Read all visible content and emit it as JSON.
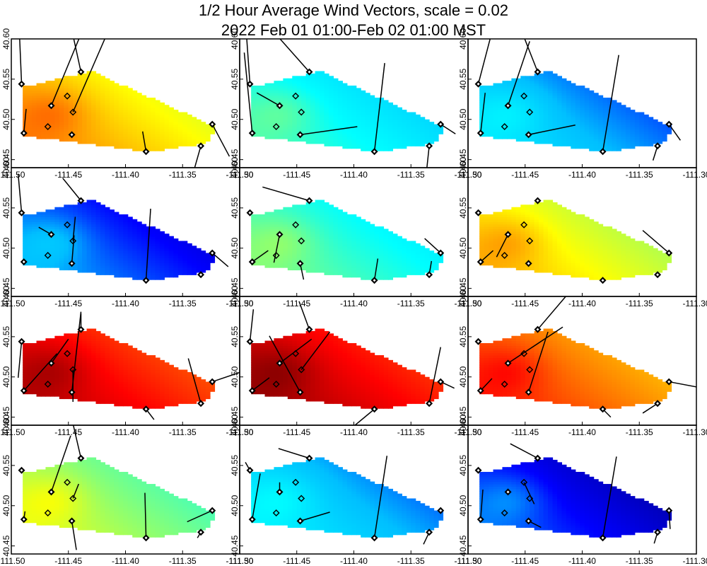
{
  "title": "1/2 Hour Average Wind Vectors, scale =  0.02",
  "subtitle": "2022 Feb 01 01:00-Feb 02 01:00 MST",
  "colors": {
    "scale": [
      "#00008b",
      "#0000ff",
      "#00bfff",
      "#00ffff",
      "#7fff7f",
      "#ffff00",
      "#ff7f00",
      "#ff0000",
      "#8b0000"
    ]
  },
  "chart_data": {
    "type": "scatter",
    "title": "1/2 Hour Average Wind Vectors, scale =  0.02",
    "subtitle": "2022 Feb 01 01:00-Feb 02 01:00 MST",
    "xlabel": "",
    "ylabel": "",
    "xlim": [
      -111.5,
      -111.3
    ],
    "ylim": [
      40.44,
      40.6
    ],
    "x_ticks": [
      "-111.50",
      "-111.45",
      "-111.40",
      "-111.35",
      "-111.30"
    ],
    "y_ticks": [
      "40.45",
      "40.50",
      "40.55",
      "40.60"
    ],
    "domain_polygon": [
      [
        -111.49,
        40.54
      ],
      [
        -111.43,
        40.56
      ],
      [
        -111.32,
        40.49
      ],
      [
        -111.33,
        40.47
      ],
      [
        -111.38,
        40.46
      ],
      [
        -111.49,
        40.48
      ]
    ],
    "stations": [
      {
        "lon": -111.491,
        "lat": 40.544,
        "s": "d"
      },
      {
        "lon": -111.489,
        "lat": 40.483,
        "s": "d"
      },
      {
        "lon": -111.465,
        "lat": 40.517,
        "s": "d"
      },
      {
        "lon": -111.468,
        "lat": 40.491,
        "s": "o"
      },
      {
        "lon": -111.451,
        "lat": 40.529,
        "s": "o"
      },
      {
        "lon": -111.446,
        "lat": 40.509,
        "s": "o"
      },
      {
        "lon": -111.447,
        "lat": 40.481,
        "s": "d"
      },
      {
        "lon": -111.439,
        "lat": 40.559,
        "s": "d"
      },
      {
        "lon": -111.382,
        "lat": 40.46,
        "s": "d"
      },
      {
        "lon": -111.334,
        "lat": 40.467,
        "s": "d"
      },
      {
        "lon": -111.324,
        "lat": 40.494,
        "s": "d"
      }
    ],
    "panels": [
      {
        "level": 0.7,
        "vectors": [
          [
            -0.003,
            0.1
          ],
          [
            0.002,
            0.03
          ],
          [
            0.035,
            0.12
          ],
          [
            0,
            0
          ],
          [
            0,
            0
          ],
          [
            0.03,
            0.098
          ],
          [
            0,
            0
          ],
          [
            -0.01,
            0.065
          ],
          [
            -0.003,
            0.025
          ],
          [
            -0.006,
            -0.03
          ],
          [
            0.015,
            -0.04
          ]
        ]
      },
      {
        "level": 0.4,
        "vectors": [
          [
            -0.003,
            0.06
          ],
          [
            -0.007,
            0.1
          ],
          [
            -0.02,
            0.016
          ],
          [
            0,
            0
          ],
          [
            0,
            0
          ],
          [
            0,
            0
          ],
          [
            0.05,
            0.01
          ],
          [
            -0.045,
            0.072
          ],
          [
            0.009,
            0.11
          ],
          [
            -0.003,
            -0.04
          ],
          [
            0.013,
            -0.012
          ]
        ]
      },
      {
        "level": 0.28,
        "vectors": [
          [
            0.012,
            0.065
          ],
          [
            0.004,
            0.05
          ],
          [
            0.019,
            0.08
          ],
          [
            0,
            0
          ],
          [
            0,
            0
          ],
          [
            0,
            0
          ],
          [
            0.041,
            0.012
          ],
          [
            -0.018,
            0.065
          ],
          [
            0.014,
            0.12
          ],
          [
            -0.004,
            -0.018
          ],
          [
            0.01,
            -0.02
          ]
        ]
      },
      {
        "level": 0.2,
        "vectors": [
          [
            -0.003,
            0.048
          ],
          [
            0,
            0
          ],
          [
            -0.011,
            0.009
          ],
          [
            0,
            0
          ],
          [
            0,
            0
          ],
          [
            0.002,
            0.03
          ],
          [
            0.002,
            0.035
          ],
          [
            -0.016,
            0.028
          ],
          [
            0.004,
            0.089
          ],
          [
            0,
            0
          ],
          [
            0.014,
            -0.017
          ]
        ]
      },
      {
        "level": 0.45,
        "vectors": [
          [
            0,
            0
          ],
          [
            0.014,
            0.014
          ],
          [
            -0.005,
            -0.035
          ],
          [
            0,
            0
          ],
          [
            0,
            0
          ],
          [
            0,
            0
          ],
          [
            0.003,
            -0.02
          ],
          [
            -0.041,
            0.017
          ],
          [
            0.003,
            0.027
          ],
          [
            0.002,
            0.017
          ],
          [
            -0.014,
            0.018
          ]
        ]
      },
      {
        "level": 0.65,
        "vectors": [
          [
            0,
            0
          ],
          [
            0.011,
            0.014
          ],
          [
            -0.01,
            -0.028
          ],
          [
            0,
            0
          ],
          [
            0,
            0
          ],
          [
            0,
            0
          ],
          [
            0,
            0
          ],
          [
            0,
            0
          ],
          [
            0,
            0
          ],
          [
            0,
            0
          ],
          [
            -0.023,
            0.028
          ]
        ]
      },
      {
        "level": 0.9,
        "vectors": [
          [
            -0.003,
            -0.045
          ],
          [
            0.029,
            0.046
          ],
          [
            0.015,
            0.03
          ],
          [
            0,
            0
          ],
          [
            0,
            0
          ],
          [
            0,
            -0.04
          ],
          [
            0.008,
            0.1
          ],
          [
            0,
            0.02
          ],
          [
            0.007,
            -0.013
          ],
          [
            -0.011,
            0.056
          ],
          [
            0.027,
            0.013
          ]
        ]
      },
      {
        "level": 0.93,
        "vectors": [
          [
            0.003,
            0.04
          ],
          [
            0.015,
            0.016
          ],
          [
            0.028,
            0.03
          ],
          [
            0,
            0
          ],
          [
            0,
            0
          ],
          [
            0.025,
            0.047
          ],
          [
            -0.027,
            0.07
          ],
          [
            -0.009,
            0.035
          ],
          [
            -0.017,
            -0.02
          ],
          [
            0.01,
            0.07
          ],
          [
            0.012,
            -0.008
          ]
        ]
      },
      {
        "level": 0.8,
        "vectors": [
          [
            0,
            0
          ],
          [
            0.01,
            0.015
          ],
          [
            0.048,
            0.045
          ],
          [
            0,
            0
          ],
          [
            0,
            0
          ],
          [
            0,
            0
          ],
          [
            0.017,
            0.075
          ],
          [
            0.027,
            0.045
          ],
          [
            0.007,
            -0.01
          ],
          [
            -0.013,
            -0.012
          ],
          [
            0.03,
            -0.008
          ]
        ]
      },
      {
        "level": 0.55,
        "vectors": [
          [
            0,
            0
          ],
          [
            0.001,
            0.01
          ],
          [
            0.017,
            0.07
          ],
          [
            0,
            0
          ],
          [
            0,
            0
          ],
          [
            0.005,
            0.018
          ],
          [
            0.004,
            -0.036
          ],
          [
            -0.007,
            0.043
          ],
          [
            -0.001,
            0.056
          ],
          [
            -0.003,
            -0.007
          ],
          [
            -0.022,
            -0.014
          ]
        ]
      },
      {
        "level": 0.3,
        "vectors": [
          [
            -0.004,
            0.01
          ],
          [
            0.007,
            0.057
          ],
          [
            0,
            0.012
          ],
          [
            0,
            0
          ],
          [
            0,
            0
          ],
          [
            0,
            0
          ],
          [
            0.026,
            0.011
          ],
          [
            -0.027,
            0.012
          ],
          [
            0.011,
            0.102
          ],
          [
            -0.005,
            -0.015
          ],
          [
            0,
            0
          ]
        ]
      },
      {
        "level": 0.15,
        "vectors": [
          [
            0,
            0
          ],
          [
            0.002,
            0.037
          ],
          [
            0,
            0
          ],
          [
            0,
            0
          ],
          [
            0.009,
            -0.027
          ],
          [
            0,
            0
          ],
          [
            0.011,
            -0.008
          ],
          [
            -0.024,
            0.018
          ],
          [
            0.012,
            0.101
          ],
          [
            -0.003,
            -0.014
          ],
          [
            0.001,
            -0.023
          ]
        ]
      }
    ]
  }
}
